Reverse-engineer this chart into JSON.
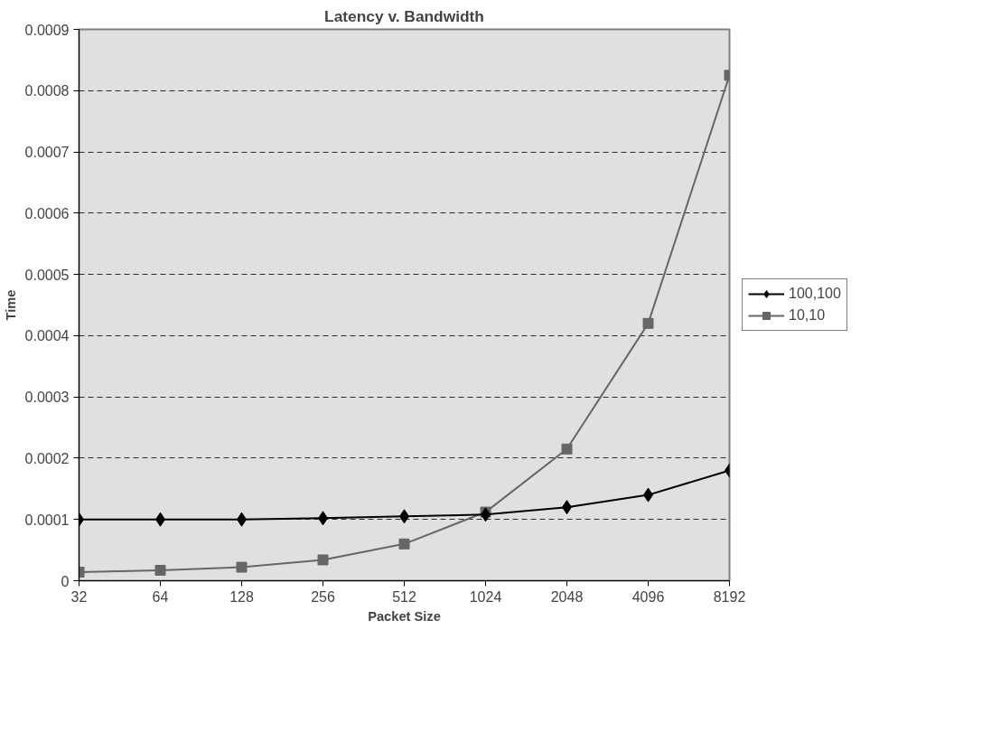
{
  "chart_data": {
    "type": "line",
    "title": "Latency v. Bandwidth",
    "xlabel": "Packet Size",
    "ylabel": "Time",
    "categories": [
      "32",
      "64",
      "128",
      "256",
      "512",
      "1024",
      "2048",
      "4096",
      "8192"
    ],
    "series": [
      {
        "name": "100,100",
        "color": "#000000",
        "marker": "diamond",
        "values": [
          0.0001,
          0.0001,
          0.0001,
          0.000102,
          0.000105,
          0.000108,
          0.00012,
          0.00014,
          0.00018
        ]
      },
      {
        "name": "10,10",
        "color": "#666666",
        "marker": "square",
        "values": [
          1.4e-05,
          1.7e-05,
          2.2e-05,
          3.4e-05,
          6e-05,
          0.000112,
          0.000215,
          0.00042,
          0.000825
        ]
      }
    ],
    "ylim": [
      0,
      0.0009
    ],
    "yticks": [
      0,
      0.0001,
      0.0002,
      0.0003,
      0.0004,
      0.0005,
      0.0006,
      0.0007,
      0.0008,
      0.0009
    ],
    "grid": "y",
    "legend": "right",
    "line_style": "solid"
  }
}
